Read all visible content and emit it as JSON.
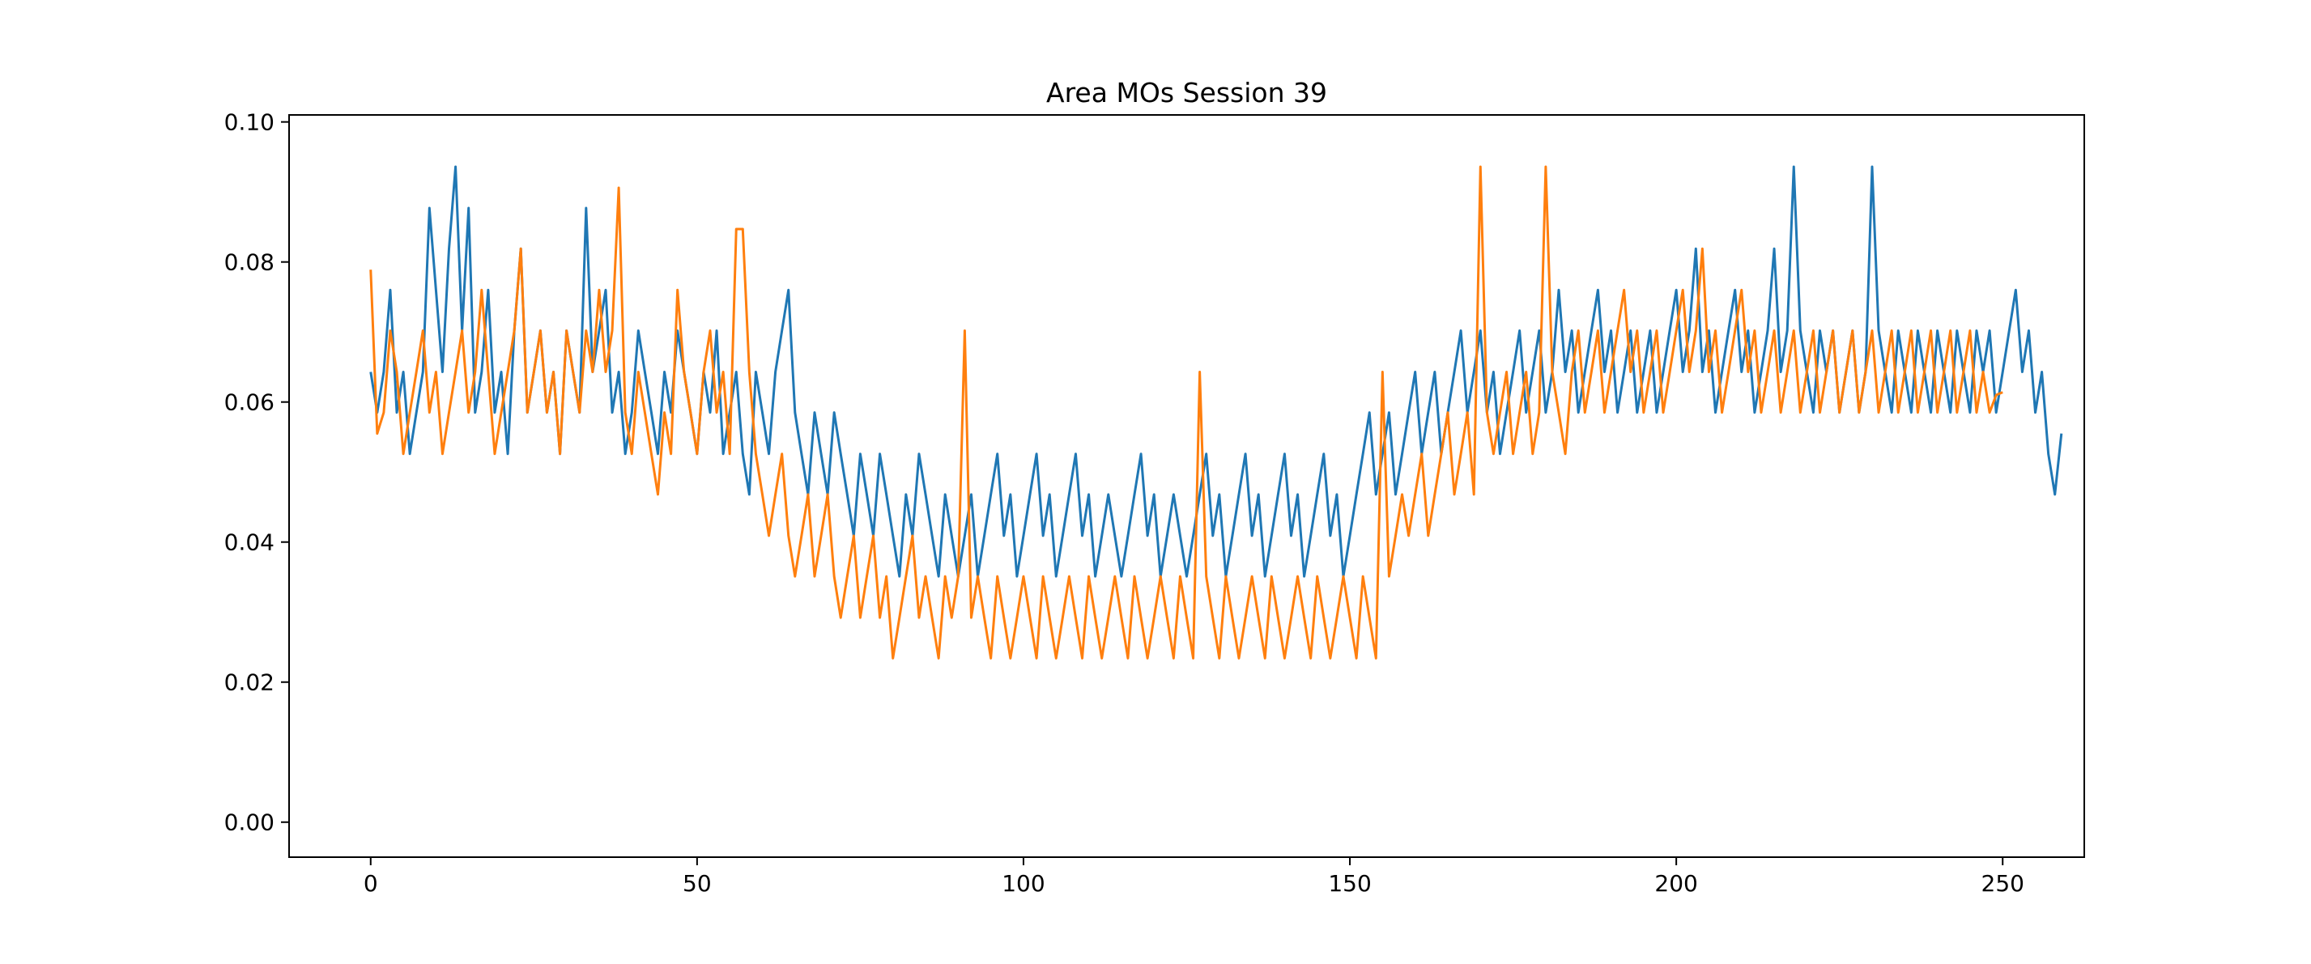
{
  "chart_data": {
    "type": "line",
    "title": "Area MOs Session 39",
    "xlabel": "",
    "ylabel": "",
    "xlim": [
      -12.5,
      262.5
    ],
    "ylim": [
      -0.005,
      0.101
    ],
    "xticks": [
      0,
      50,
      100,
      150,
      200,
      250
    ],
    "yticks": [
      0.0,
      0.02,
      0.04,
      0.06,
      0.08,
      0.1
    ],
    "xtick_labels": [
      "0",
      "50",
      "100",
      "150",
      "200",
      "250"
    ],
    "ytick_labels": [
      "0.00",
      "0.02",
      "0.04",
      "0.06",
      "0.08",
      "0.10"
    ],
    "grid": false,
    "legend": "none",
    "n_points": 250,
    "colors": [
      "#1f77b4",
      "#ff7f0e",
      "#2ca02c",
      "#d62728",
      "#9467bd",
      "#8c564b",
      "#e377c2",
      "#7f7f7f",
      "#bcbd22",
      "#17becf"
    ],
    "series": [
      {
        "values": [
          0.0643,
          0.0585,
          0.0643,
          0.076,
          0.0585,
          0.0643,
          0.0526,
          0.0585,
          0.0643,
          0.0877,
          0.076,
          0.0643,
          0.0819,
          0.0936,
          0.0702,
          0.0877,
          0.0585,
          0.0643,
          0.076,
          0.0585,
          0.0643,
          0.0526,
          0.0702,
          0.0819,
          0.0585,
          0.0643,
          0.0702,
          0.0585,
          0.0643,
          0.0526,
          0.0702,
          0.0643,
          0.0585,
          0.0877,
          0.0643,
          0.0702,
          0.076,
          0.0585,
          0.0643,
          0.0526,
          0.0585,
          0.0702,
          0.0643,
          0.0585,
          0.0526,
          0.0643,
          0.0585,
          0.0702,
          0.0643,
          0.0585,
          0.0526,
          0.0643,
          0.0585,
          0.0702,
          0.0526,
          0.0585,
          0.0643,
          0.0526,
          0.0468,
          0.0643,
          0.0585,
          0.0526,
          0.0643,
          0.0702,
          0.076,
          0.0585,
          0.0526,
          0.0468,
          0.0585,
          0.0526,
          0.0468,
          0.0585,
          0.0526,
          0.0468,
          0.0409,
          0.0526,
          0.0468,
          0.0409,
          0.0526,
          0.0468,
          0.0409,
          0.0351,
          0.0468,
          0.0409,
          0.0526,
          0.0468,
          0.0409,
          0.0351,
          0.0468,
          0.0409,
          0.0351,
          0.0409,
          0.0468,
          0.0351,
          0.0409,
          0.0468,
          0.0526,
          0.0409,
          0.0468,
          0.0351,
          0.0409,
          0.0468,
          0.0526,
          0.0409,
          0.0468,
          0.0351,
          0.0409,
          0.0468,
          0.0526,
          0.0409,
          0.0468,
          0.0351,
          0.0409,
          0.0468,
          0.0409,
          0.0351,
          0.0409,
          0.0468,
          0.0526,
          0.0409,
          0.0468,
          0.0351,
          0.0409,
          0.0468,
          0.0409,
          0.0351,
          0.0409,
          0.0468,
          0.0526,
          0.0409,
          0.0468,
          0.0351,
          0.0409,
          0.0468,
          0.0526,
          0.0409,
          0.0468,
          0.0351,
          0.0409,
          0.0468,
          0.0526,
          0.0409,
          0.0468,
          0.0351,
          0.0409,
          0.0468,
          0.0526,
          0.0409,
          0.0468,
          0.0351,
          0.0409,
          0.0468,
          0.0526,
          0.0585,
          0.0468,
          0.0526,
          0.0585,
          0.0468,
          0.0526,
          0.0585,
          0.0643,
          0.0526,
          0.0585,
          0.0643,
          0.0526,
          0.0585,
          0.0643,
          0.0702,
          0.0585,
          0.0643,
          0.0702,
          0.0585,
          0.0643,
          0.0526,
          0.0585,
          0.0643,
          0.0702,
          0.0585,
          0.0643,
          0.0702,
          0.0585,
          0.0643,
          0.076,
          0.0643,
          0.0702,
          0.0585,
          0.0643,
          0.0702,
          0.076,
          0.0643,
          0.0702,
          0.0585,
          0.0643,
          0.0702,
          0.0585,
          0.0643,
          0.0702,
          0.0585,
          0.0643,
          0.0702,
          0.076,
          0.0643,
          0.0702,
          0.0819,
          0.0643,
          0.0702,
          0.0585,
          0.0643,
          0.0702,
          0.076,
          0.0643,
          0.0702,
          0.0585,
          0.0643,
          0.0702,
          0.0819,
          0.0643,
          0.0702,
          0.0936,
          0.0702,
          0.0643,
          0.0585,
          0.0702,
          0.0643,
          0.0702,
          0.0585,
          0.0643,
          0.0702,
          0.0585,
          0.0643,
          0.0936,
          0.0702,
          0.0643,
          0.0585,
          0.0702,
          0.0643,
          0.0585,
          0.0702,
          0.0643,
          0.0585,
          0.0702,
          0.0643,
          0.0585,
          0.0702,
          0.0643,
          0.0585,
          0.0702,
          0.0643,
          0.0702,
          0.0585,
          0.0643,
          0.0702,
          0.076,
          0.0643,
          0.0702,
          0.0585,
          0.0643,
          0.0526,
          0.0468,
          0.0555
        ]
      },
      {
        "values": [
          0.0789,
          0.0555,
          0.0585,
          0.0702,
          0.0643,
          0.0526,
          0.0585,
          0.0643,
          0.0702,
          0.0585,
          0.0643,
          0.0526,
          0.0585,
          0.0643,
          0.0702,
          0.0585,
          0.0643,
          0.076,
          0.0643,
          0.0526,
          0.0585,
          0.0643,
          0.0702,
          0.0819,
          0.0585,
          0.0643,
          0.0702,
          0.0585,
          0.0643,
          0.0526,
          0.0702,
          0.0643,
          0.0585,
          0.0702,
          0.0643,
          0.076,
          0.0643,
          0.0702,
          0.0906,
          0.0585,
          0.0526,
          0.0643,
          0.0585,
          0.0526,
          0.0468,
          0.0585,
          0.0526,
          0.076,
          0.0643,
          0.0585,
          0.0526,
          0.0643,
          0.0702,
          0.0585,
          0.0643,
          0.0526,
          0.0847,
          0.0847,
          0.0643,
          0.0526,
          0.0468,
          0.0409,
          0.0468,
          0.0526,
          0.0409,
          0.0351,
          0.0409,
          0.0468,
          0.0351,
          0.0409,
          0.0468,
          0.0351,
          0.0292,
          0.0351,
          0.0409,
          0.0292,
          0.0351,
          0.0409,
          0.0292,
          0.0351,
          0.0234,
          0.0292,
          0.0351,
          0.0409,
          0.0292,
          0.0351,
          0.0292,
          0.0234,
          0.0351,
          0.0292,
          0.0351,
          0.0702,
          0.0292,
          0.0351,
          0.0292,
          0.0234,
          0.0351,
          0.0292,
          0.0234,
          0.0292,
          0.0351,
          0.0292,
          0.0234,
          0.0351,
          0.0292,
          0.0234,
          0.0292,
          0.0351,
          0.0292,
          0.0234,
          0.0351,
          0.0292,
          0.0234,
          0.0292,
          0.0351,
          0.0292,
          0.0234,
          0.0351,
          0.0292,
          0.0234,
          0.0292,
          0.0351,
          0.0292,
          0.0234,
          0.0351,
          0.0292,
          0.0234,
          0.0643,
          0.0351,
          0.0292,
          0.0234,
          0.0351,
          0.0292,
          0.0234,
          0.0292,
          0.0351,
          0.0292,
          0.0234,
          0.0351,
          0.0292,
          0.0234,
          0.0292,
          0.0351,
          0.0292,
          0.0234,
          0.0351,
          0.0292,
          0.0234,
          0.0292,
          0.0351,
          0.0292,
          0.0234,
          0.0351,
          0.0292,
          0.0234,
          0.0643,
          0.0351,
          0.0409,
          0.0468,
          0.0409,
          0.0468,
          0.0526,
          0.0409,
          0.0468,
          0.0526,
          0.0585,
          0.0468,
          0.0526,
          0.0585,
          0.0468,
          0.0936,
          0.0585,
          0.0526,
          0.0585,
          0.0643,
          0.0526,
          0.0585,
          0.0643,
          0.0526,
          0.0585,
          0.0936,
          0.0643,
          0.0585,
          0.0526,
          0.0643,
          0.0702,
          0.0585,
          0.0643,
          0.0702,
          0.0585,
          0.0643,
          0.0702,
          0.076,
          0.0643,
          0.0702,
          0.0585,
          0.0643,
          0.0702,
          0.0585,
          0.0643,
          0.0702,
          0.076,
          0.0643,
          0.0702,
          0.0819,
          0.0643,
          0.0702,
          0.0585,
          0.0643,
          0.0702,
          0.076,
          0.0643,
          0.0702,
          0.0585,
          0.0643,
          0.0702,
          0.0585,
          0.0643,
          0.0702,
          0.0585,
          0.0643,
          0.0702,
          0.0585,
          0.0643,
          0.0702,
          0.0585,
          0.0643,
          0.0702,
          0.0585,
          0.0643,
          0.0702,
          0.0585,
          0.0643,
          0.0702,
          0.0585,
          0.0643,
          0.0702,
          0.0585,
          0.0643,
          0.0702,
          0.0585,
          0.0643,
          0.0702,
          0.0585,
          0.0643,
          0.0702,
          0.0585,
          0.0643,
          0.0585,
          0.061,
          0.0614
        ]
      }
    ]
  }
}
